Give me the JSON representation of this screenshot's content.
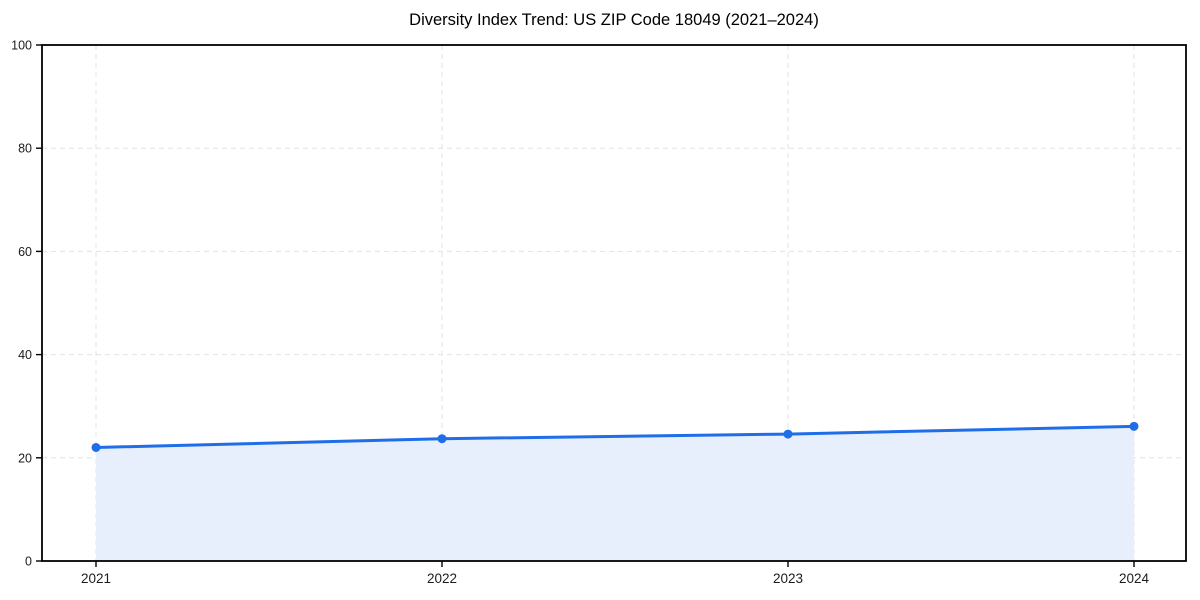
{
  "chart_data": {
    "type": "line",
    "title": "Diversity Index Trend: US ZIP Code 18049 (2021–2024)",
    "x": [
      "2021",
      "2022",
      "2023",
      "2024"
    ],
    "series": [
      {
        "name": "Diversity Index",
        "values": [
          22,
          23.7,
          24.6,
          26.1
        ]
      }
    ],
    "xlabel": "",
    "ylabel": "",
    "ylim": [
      0,
      100
    ],
    "yticks": [
      0,
      20,
      40,
      60,
      80,
      100
    ],
    "legend": "none",
    "grid": {
      "style": "dashed",
      "horizontal": true,
      "vertical": true
    },
    "area_fill": true,
    "marker": "circle",
    "colors": {
      "line": "#1f6ee8",
      "marker": "#1f6ee8",
      "fill": "#e8effc",
      "grid": "#e3e3e3",
      "axis": "#000000",
      "text": "#1c1c1c",
      "background": "#ffffff"
    }
  }
}
